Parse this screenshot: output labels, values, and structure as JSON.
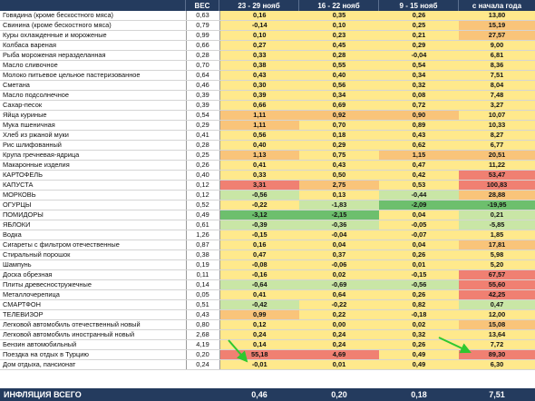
{
  "headers": [
    "",
    "ВЕС",
    "23 - 29 нояб",
    "16 - 22 нояб",
    "9 - 15 нояб",
    "с начала года"
  ],
  "rows": [
    {
      "name": "Говядина (кроме бескостного мяса)",
      "w": "0,63",
      "a": "0,16",
      "b": "0,35",
      "c": "0,26",
      "t": "13,80",
      "group": false
    },
    {
      "name": "Свинина (кроме бескостного мяса)",
      "w": "0,79",
      "a": "-0,14",
      "b": "0,10",
      "c": "0,25",
      "t": "15,19",
      "group": false
    },
    {
      "name": "Куры охлажденные и мороженые",
      "w": "0,99",
      "a": "0,10",
      "b": "0,23",
      "c": "0,21",
      "t": "27,57",
      "group": false
    },
    {
      "name": "Колбаса вареная",
      "w": "0,66",
      "a": "0,27",
      "b": "0,45",
      "c": "0,29",
      "t": "9,00",
      "group": false
    },
    {
      "name": "Рыба мороженая неразделанная",
      "w": "0,28",
      "a": "0,33",
      "b": "0,28",
      "c": "-0,04",
      "t": "6,81",
      "group": false
    },
    {
      "name": "Масло сливочное",
      "w": "0,70",
      "a": "0,38",
      "b": "0,55",
      "c": "0,54",
      "t": "8,36",
      "group": true
    },
    {
      "name": "Молоко питьевое цельное пастеризованное",
      "w": "0,64",
      "a": "0,43",
      "b": "0,40",
      "c": "0,34",
      "t": "7,51",
      "group": false
    },
    {
      "name": "Сметана",
      "w": "0,46",
      "a": "0,30",
      "b": "0,56",
      "c": "0,32",
      "t": "8,04",
      "group": false
    },
    {
      "name": "Масло подсолнечное",
      "w": "0,39",
      "a": "0,39",
      "b": "0,34",
      "c": "0,08",
      "t": "7,48",
      "group": true
    },
    {
      "name": "Сахар-песок",
      "w": "0,39",
      "a": "0,66",
      "b": "0,69",
      "c": "0,72",
      "t": "3,27",
      "group": false
    },
    {
      "name": "Яйца куриные",
      "w": "0,54",
      "a": "1,11",
      "b": "0,92",
      "c": "0,90",
      "t": "10,07",
      "group": true
    },
    {
      "name": "Мука пшеничная",
      "w": "0,29",
      "a": "1,11",
      "b": "0,70",
      "c": "0,89",
      "t": "10,33",
      "group": false
    },
    {
      "name": "Хлеб из ржаной муки",
      "w": "0,41",
      "a": "0,56",
      "b": "0,18",
      "c": "0,43",
      "t": "8,27",
      "group": false
    },
    {
      "name": "Рис шлифованный",
      "w": "0,28",
      "a": "0,40",
      "b": "0,29",
      "c": "0,62",
      "t": "6,77",
      "group": false
    },
    {
      "name": "Крупа гречневая-ядрица",
      "w": "0,25",
      "a": "1,13",
      "b": "0,75",
      "c": "1,15",
      "t": "20,51",
      "group": false
    },
    {
      "name": "Макаронные изделия",
      "w": "0,26",
      "a": "0,41",
      "b": "0,43",
      "c": "0,47",
      "t": "11,22",
      "group": false
    },
    {
      "name": "КАРТОФЕЛЬ",
      "w": "0,40",
      "a": "0,33",
      "b": "0,50",
      "c": "0,42",
      "t": "53,47",
      "group": true
    },
    {
      "name": "КАПУСТА",
      "w": "0,12",
      "a": "3,31",
      "b": "2,75",
      "c": "0,53",
      "t": "100,83",
      "group": false
    },
    {
      "name": "МОРКОВЬ",
      "w": "0,12",
      "a": "-0,56",
      "b": "0,13",
      "c": "-0,44",
      "t": "28,88",
      "group": false
    },
    {
      "name": "ОГУРЦЫ",
      "w": "0,52",
      "a": "-0,22",
      "b": "-1,83",
      "c": "-2,09",
      "t": "-19,95",
      "group": false
    },
    {
      "name": "ПОМИДОРЫ",
      "w": "0,49",
      "a": "-3,12",
      "b": "-2,15",
      "c": "0,04",
      "t": "0,21",
      "group": false
    },
    {
      "name": "ЯБЛОКИ",
      "w": "0,61",
      "a": "-0,39",
      "b": "-0,36",
      "c": "-0,05",
      "t": "-5,85",
      "group": false
    },
    {
      "name": "Водка",
      "w": "1,26",
      "a": "-0,15",
      "b": "-0,04",
      "c": "-0,07",
      "t": "1,85",
      "group": true
    },
    {
      "name": "Сигареты с фильтром отечественные",
      "w": "0,87",
      "a": "0,16",
      "b": "0,04",
      "c": "0,04",
      "t": "17,81",
      "group": false
    },
    {
      "name": "Стиральный порошок",
      "w": "0,38",
      "a": "0,47",
      "b": "0,37",
      "c": "0,26",
      "t": "5,98",
      "group": true
    },
    {
      "name": "Шампунь",
      "w": "0,19",
      "a": "-0,08",
      "b": "-0,06",
      "c": "0,01",
      "t": "5,20",
      "group": false
    },
    {
      "name": "Доска обрезная",
      "w": "0,11",
      "a": "-0,16",
      "b": "0,02",
      "c": "-0,15",
      "t": "67,57",
      "group": true
    },
    {
      "name": "Плиты древесностружечные",
      "w": "0,14",
      "a": "-0,64",
      "b": "-0,69",
      "c": "-0,56",
      "t": "55,60",
      "group": false
    },
    {
      "name": "Металлочерепица",
      "w": "0,05",
      "a": "0,41",
      "b": "0,64",
      "c": "0,26",
      "t": "42,25",
      "group": false
    },
    {
      "name": "СМАРТФОН",
      "w": "0,51",
      "a": "-0,42",
      "b": "-0,22",
      "c": "0,82",
      "t": "0,47",
      "group": true
    },
    {
      "name": "ТЕЛЕВИЗОР",
      "w": "0,43",
      "a": "0,99",
      "b": "0,22",
      "c": "-0,18",
      "t": "12,00",
      "group": false
    },
    {
      "name": "Легковой автомобиль отечественный новый",
      "w": "0,80",
      "a": "0,12",
      "b": "0,00",
      "c": "0,02",
      "t": "15,08",
      "group": true
    },
    {
      "name": "Легковой автомобиль иностранный новый",
      "w": "2,68",
      "a": "0,24",
      "b": "0,24",
      "c": "0,32",
      "t": "13,64",
      "group": false
    },
    {
      "name": "Бензин автомобильный",
      "w": "4,19",
      "a": "0,14",
      "b": "0,24",
      "c": "0,26",
      "t": "7,72",
      "group": false
    },
    {
      "name": "Поездка на отдых в Турцию",
      "w": "0,20",
      "a": "55,18",
      "b": "4,69",
      "c": "0,49",
      "t": "89,30",
      "group": true
    },
    {
      "name": "Дом отдыха, пансионат",
      "w": "0,24",
      "a": "-0,01",
      "b": "0,01",
      "c": "0,49",
      "t": "6,30",
      "group": false
    }
  ],
  "footer": {
    "label": "ИНФЛЯЦИЯ ВСЕГО",
    "a": "0,46",
    "b": "0,20",
    "c": "0,18",
    "t": "7,51"
  },
  "colors": {
    "header_bg": "#243b5e",
    "strong_red": "#f08072",
    "green": "#6dbf6d",
    "light_green": "#c9e6a6",
    "yellow": "#ffe98c",
    "orange": "#f9c47a",
    "arrow": "#2fc82f"
  }
}
